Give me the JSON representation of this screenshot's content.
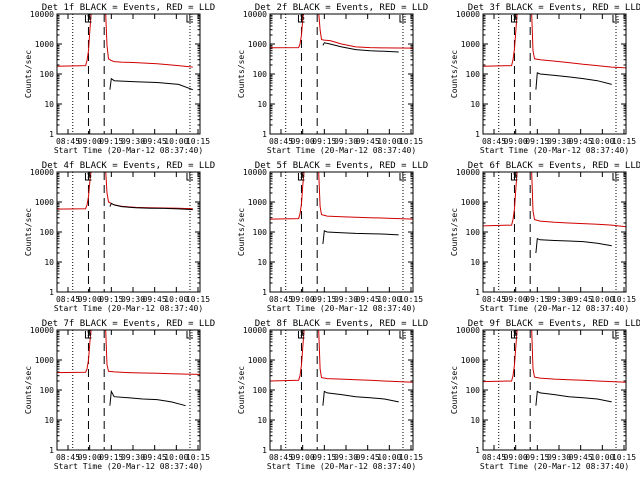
{
  "figure": {
    "tick_labels_x": [
      "08:45",
      "09:00",
      "09:15",
      "09:30",
      "09:45",
      "10:00",
      "10:15"
    ],
    "tick_labels_y": [
      "1",
      "10",
      "100",
      "1000",
      "10000"
    ],
    "ylabel": "Counts/sec",
    "xlabel": "Start Time (20-Mar-12 08:37:40)",
    "marker_labels": [
      "S",
      "E"
    ],
    "colors": {
      "events": "#000000",
      "lld": "#d00000",
      "axes": "#000000"
    }
  },
  "chart_data": [
    {
      "type": "line",
      "title": "Det 1f BLACK = Events, RED = LLD",
      "xlabel": "Start Time (20-Mar-12 08:37:40)",
      "ylabel": "Counts/sec",
      "xlim": [
        0,
        100
      ],
      "ylim": [
        1,
        10000
      ],
      "yscale": "log",
      "dashed_markers": [
        22,
        33
      ],
      "dotted_markers": [
        11,
        93
      ],
      "bracket_markers": [
        {
          "label": "S",
          "x": 22
        },
        {
          "label": "E",
          "x": 93
        }
      ],
      "series": [
        {
          "name": "LLD",
          "color": "#d00000",
          "x": [
            0,
            20,
            21,
            22,
            23,
            24,
            26,
            30,
            34,
            35,
            36,
            38,
            40,
            45,
            55,
            70,
            85,
            95
          ],
          "y": [
            180,
            190,
            280,
            600,
            3000,
            12000,
            12000,
            12000,
            12000,
            900,
            320,
            280,
            260,
            250,
            240,
            220,
            190,
            170
          ]
        },
        {
          "name": "Events",
          "color": "#000000",
          "x": [
            37,
            38,
            40,
            45,
            55,
            70,
            85,
            95
          ],
          "y": [
            30,
            70,
            60,
            58,
            55,
            52,
            45,
            30
          ]
        }
      ]
    },
    {
      "type": "line",
      "title": "Det 2f BLACK = Events, RED = LLD",
      "xlabel": "Start Time (20-Mar-12 08:37:40)",
      "ylabel": "Counts/sec",
      "xlim": [
        0,
        100
      ],
      "ylim": [
        1,
        10000
      ],
      "yscale": "log",
      "dashed_markers": [
        22,
        33
      ],
      "dotted_markers": [
        11,
        93
      ],
      "bracket_markers": [
        {
          "label": "S",
          "x": 22
        },
        {
          "label": "E",
          "x": 93
        }
      ],
      "series": [
        {
          "name": "LLD",
          "color": "#d00000",
          "x": [
            0,
            20,
            21,
            22,
            23,
            24,
            26,
            30,
            34,
            35,
            36,
            38,
            42,
            50,
            60,
            70,
            80,
            100
          ],
          "y": [
            750,
            760,
            1000,
            2000,
            8000,
            12000,
            12000,
            12000,
            12000,
            3000,
            1400,
            1350,
            1300,
            1000,
            800,
            760,
            740,
            730
          ]
        },
        {
          "name": "Events",
          "color": "#000000",
          "x": [
            37,
            38,
            42,
            50,
            60,
            70,
            80,
            90
          ],
          "y": [
            900,
            1100,
            1000,
            800,
            650,
            600,
            570,
            540
          ]
        }
      ]
    },
    {
      "type": "line",
      "title": "Det 3f BLACK = Events, RED = LLD",
      "xlabel": "Start Time (20-Mar-12 08:37:40)",
      "ylabel": "Counts/sec",
      "xlim": [
        0,
        100
      ],
      "ylim": [
        1,
        10000
      ],
      "yscale": "log",
      "dashed_markers": [
        22,
        33
      ],
      "dotted_markers": [
        11,
        93
      ],
      "bracket_markers": [
        {
          "label": "S",
          "x": 22
        },
        {
          "label": "E",
          "x": 93
        }
      ],
      "series": [
        {
          "name": "LLD",
          "color": "#d00000",
          "x": [
            0,
            20,
            21,
            22,
            23,
            24,
            26,
            30,
            34,
            35,
            36,
            40,
            50,
            60,
            70,
            80,
            90,
            100
          ],
          "y": [
            180,
            190,
            300,
            700,
            3000,
            12000,
            12000,
            12000,
            12000,
            600,
            320,
            300,
            270,
            240,
            210,
            190,
            170,
            160
          ]
        },
        {
          "name": "Events",
          "color": "#000000",
          "x": [
            37,
            38,
            40,
            50,
            60,
            70,
            80,
            90
          ],
          "y": [
            30,
            110,
            100,
            90,
            80,
            70,
            60,
            45
          ]
        }
      ]
    },
    {
      "type": "line",
      "title": "Det 4f BLACK = Events, RED = LLD",
      "xlabel": "Start Time (20-Mar-12 08:37:40)",
      "ylabel": "Counts/sec",
      "xlim": [
        0,
        100
      ],
      "ylim": [
        1,
        10000
      ],
      "yscale": "log",
      "dashed_markers": [
        22,
        33
      ],
      "dotted_markers": [
        11,
        93
      ],
      "bracket_markers": [
        {
          "label": "S",
          "x": 22
        },
        {
          "label": "E",
          "x": 93
        }
      ],
      "series": [
        {
          "name": "LLD",
          "color": "#d00000",
          "x": [
            0,
            20,
            21,
            22,
            23,
            24,
            26,
            30,
            34,
            35,
            36,
            38,
            40,
            45,
            55,
            65,
            75,
            85,
            95
          ],
          "y": [
            580,
            600,
            800,
            1500,
            5000,
            12000,
            12000,
            12000,
            12000,
            2000,
            1000,
            900,
            800,
            720,
            660,
            640,
            630,
            620,
            600
          ]
        },
        {
          "name": "Events",
          "color": "#000000",
          "x": [
            37,
            38,
            40,
            45,
            55,
            65,
            75,
            85,
            95
          ],
          "y": [
            700,
            900,
            800,
            700,
            640,
            620,
            610,
            590,
            560
          ]
        }
      ]
    },
    {
      "type": "line",
      "title": "Det 5f BLACK = Events, RED = LLD",
      "xlabel": "Start Time (20-Mar-12 08:37:40)",
      "ylabel": "Counts/sec",
      "xlim": [
        0,
        100
      ],
      "ylim": [
        1,
        10000
      ],
      "yscale": "log",
      "dashed_markers": [
        22,
        33
      ],
      "dotted_markers": [
        11,
        93
      ],
      "bracket_markers": [
        {
          "label": "S",
          "x": 22
        },
        {
          "label": "E",
          "x": 93
        }
      ],
      "series": [
        {
          "name": "LLD",
          "color": "#d00000",
          "x": [
            0,
            20,
            21,
            22,
            23,
            24,
            26,
            30,
            34,
            35,
            36,
            40,
            50,
            60,
            70,
            80,
            90,
            100
          ],
          "y": [
            270,
            280,
            400,
            900,
            4000,
            12000,
            12000,
            12000,
            12000,
            700,
            380,
            340,
            320,
            310,
            300,
            290,
            280,
            270
          ]
        },
        {
          "name": "Events",
          "color": "#000000",
          "x": [
            37,
            38,
            40,
            50,
            60,
            70,
            80,
            90
          ],
          "y": [
            40,
            110,
            100,
            95,
            90,
            88,
            85,
            80
          ]
        }
      ]
    },
    {
      "type": "line",
      "title": "Det 6f BLACK = Events, RED = LLD",
      "xlabel": "Start Time (20-Mar-12 08:37:40)",
      "ylabel": "Counts/sec",
      "xlim": [
        0,
        100
      ],
      "ylim": [
        1,
        10000
      ],
      "yscale": "log",
      "dashed_markers": [
        22,
        33
      ],
      "dotted_markers": [
        11,
        93
      ],
      "bracket_markers": [
        {
          "label": "S",
          "x": 22
        },
        {
          "label": "E",
          "x": 93
        }
      ],
      "series": [
        {
          "name": "LLD",
          "color": "#d00000",
          "x": [
            0,
            20,
            21,
            22,
            23,
            24,
            26,
            30,
            34,
            35,
            36,
            40,
            50,
            60,
            70,
            80,
            90,
            100
          ],
          "y": [
            160,
            170,
            260,
            600,
            3000,
            12000,
            12000,
            12000,
            12000,
            500,
            260,
            230,
            210,
            200,
            190,
            180,
            170,
            150
          ]
        },
        {
          "name": "Events",
          "color": "#000000",
          "x": [
            37,
            38,
            40,
            50,
            60,
            70,
            80,
            90
          ],
          "y": [
            20,
            60,
            55,
            52,
            50,
            48,
            42,
            35
          ]
        }
      ]
    },
    {
      "type": "line",
      "title": "Det 7f BLACK = Events, RED = LLD",
      "xlabel": "Start Time (20-Mar-12 08:37:40)",
      "ylabel": "Counts/sec",
      "xlim": [
        0,
        100
      ],
      "ylim": [
        1,
        10000
      ],
      "yscale": "log",
      "dashed_markers": [
        22,
        33
      ],
      "dotted_markers": [
        11,
        93
      ],
      "bracket_markers": [
        {
          "label": "S",
          "x": 22
        },
        {
          "label": "E",
          "x": 93
        }
      ],
      "series": [
        {
          "name": "LLD",
          "color": "#d00000",
          "x": [
            0,
            20,
            21,
            22,
            23,
            24,
            26,
            30,
            34,
            35,
            36,
            40,
            50,
            60,
            70,
            80,
            90,
            100
          ],
          "y": [
            380,
            390,
            500,
            1000,
            4000,
            12000,
            12000,
            12000,
            12000,
            700,
            420,
            400,
            380,
            370,
            360,
            350,
            340,
            330
          ]
        },
        {
          "name": "Events",
          "color": "#000000",
          "x": [
            37,
            38,
            40,
            50,
            60,
            70,
            80,
            90
          ],
          "y": [
            30,
            90,
            60,
            55,
            50,
            48,
            40,
            30
          ]
        }
      ]
    },
    {
      "type": "line",
      "title": "Det 8f BLACK = Events, RED = LLD",
      "xlabel": "Start Time (20-Mar-12 08:37:40)",
      "ylabel": "Counts/sec",
      "xlim": [
        0,
        100
      ],
      "ylim": [
        1,
        10000
      ],
      "yscale": "log",
      "dashed_markers": [
        22,
        33
      ],
      "dotted_markers": [
        11,
        93
      ],
      "bracket_markers": [
        {
          "label": "S",
          "x": 22
        },
        {
          "label": "E",
          "x": 93
        }
      ],
      "series": [
        {
          "name": "LLD",
          "color": "#d00000",
          "x": [
            0,
            20,
            21,
            22,
            23,
            24,
            26,
            30,
            34,
            35,
            36,
            40,
            50,
            60,
            70,
            80,
            90,
            100
          ],
          "y": [
            200,
            210,
            300,
            700,
            3000,
            12000,
            12000,
            12000,
            12000,
            500,
            260,
            240,
            230,
            220,
            210,
            200,
            190,
            180
          ]
        },
        {
          "name": "Events",
          "color": "#000000",
          "x": [
            37,
            38,
            40,
            50,
            60,
            70,
            80,
            90
          ],
          "y": [
            30,
            90,
            80,
            70,
            60,
            55,
            50,
            40
          ]
        }
      ]
    },
    {
      "type": "line",
      "title": "Det 9f BLACK = Events, RED = LLD",
      "xlabel": "Start Time (20-Mar-12 08:37:40)",
      "ylabel": "Counts/sec",
      "xlim": [
        0,
        100
      ],
      "ylim": [
        1,
        10000
      ],
      "yscale": "log",
      "dashed_markers": [
        22,
        33
      ],
      "dotted_markers": [
        11,
        93
      ],
      "bracket_markers": [
        {
          "label": "S",
          "x": 22
        },
        {
          "label": "E",
          "x": 93
        }
      ],
      "series": [
        {
          "name": "LLD",
          "color": "#d00000",
          "x": [
            0,
            20,
            21,
            22,
            23,
            24,
            26,
            30,
            34,
            35,
            36,
            40,
            50,
            60,
            70,
            80,
            90,
            100
          ],
          "y": [
            190,
            200,
            300,
            700,
            3000,
            12000,
            12000,
            12000,
            12000,
            500,
            270,
            250,
            230,
            220,
            210,
            200,
            190,
            180
          ]
        },
        {
          "name": "Events",
          "color": "#000000",
          "x": [
            37,
            38,
            40,
            50,
            60,
            70,
            80,
            90
          ],
          "y": [
            30,
            90,
            80,
            70,
            60,
            55,
            50,
            40
          ]
        }
      ]
    }
  ]
}
